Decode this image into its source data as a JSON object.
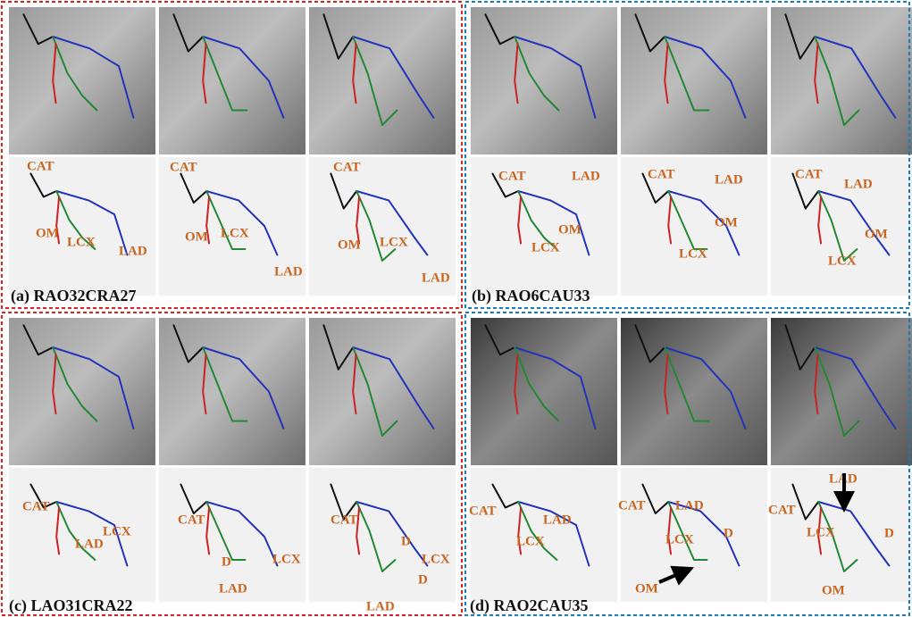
{
  "panels": [
    {
      "caption": "(a) RAO32CRA27",
      "views": [
        {
          "labels": [
            "CAT",
            "OM",
            "LCX",
            "LAD"
          ]
        },
        {
          "labels": [
            "CAT",
            "OM",
            "LCX",
            "LAD"
          ]
        },
        {
          "labels": [
            "CAT",
            "OM",
            "LCX",
            "LAD"
          ]
        }
      ]
    },
    {
      "caption": "(b) RAO6CAU33",
      "views": [
        {
          "labels": [
            "CAT",
            "LAD",
            "OM",
            "LCX"
          ]
        },
        {
          "labels": [
            "CAT",
            "LAD",
            "OM",
            "LCX"
          ]
        },
        {
          "labels": [
            "CAT",
            "LAD",
            "OM",
            "LCX"
          ]
        }
      ]
    },
    {
      "caption": "(c) LAO31CRA22",
      "views": [
        {
          "labels": [
            "CAT",
            "LCX",
            "LAD"
          ]
        },
        {
          "labels": [
            "CAT",
            "D",
            "LCX",
            "LAD"
          ]
        },
        {
          "labels": [
            "CAT",
            "D",
            "LCX",
            "D",
            "LAD"
          ]
        }
      ]
    },
    {
      "caption": "(d) RAO2CAU35",
      "views": [
        {
          "labels": [
            "CAT",
            "LAD",
            "LCX"
          ]
        },
        {
          "labels": [
            "CAT",
            "LAD",
            "LCX",
            "D",
            "OM"
          ]
        },
        {
          "labels": [
            "LAD",
            "CAT",
            "LCX",
            "D",
            "OM"
          ]
        }
      ]
    }
  ]
}
